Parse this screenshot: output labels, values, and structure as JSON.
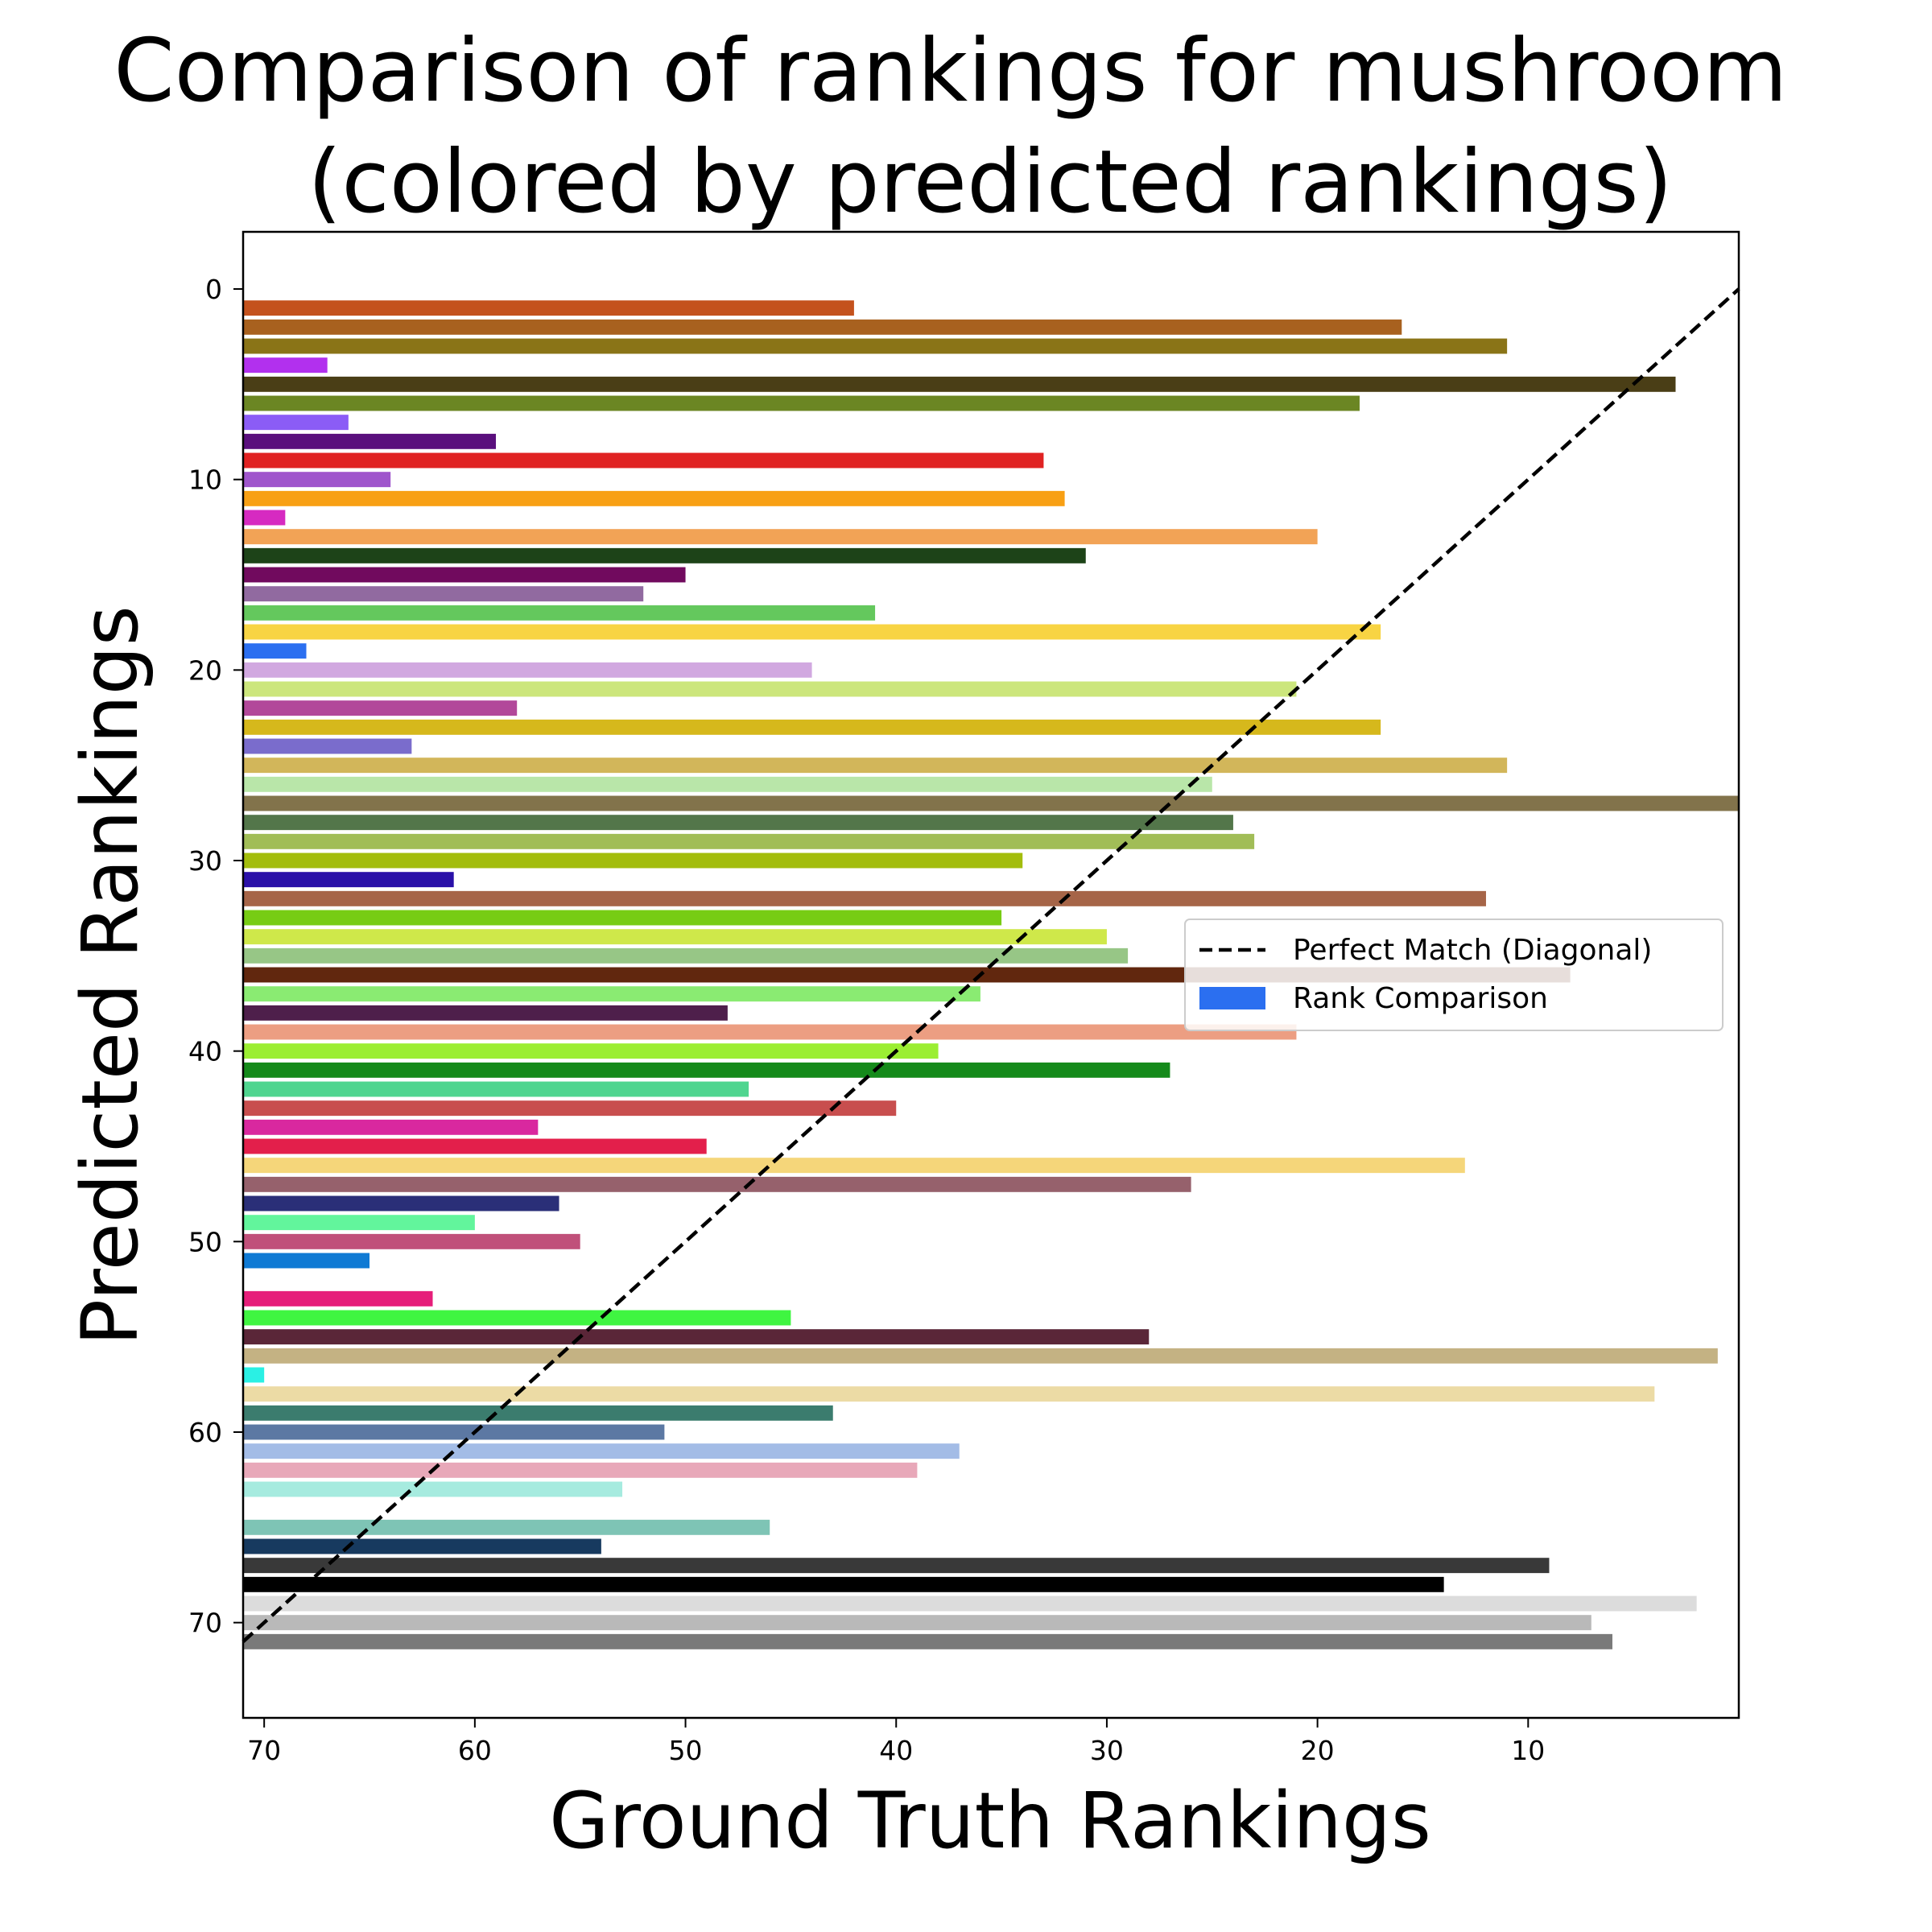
{
  "chart_data": {
    "type": "bar",
    "orientation": "horizontal",
    "title": "Comparison of rankings for mushroom\n(colored by predicted rankings)",
    "xlabel": "Ground Truth Rankings",
    "ylabel": "Predicted Rankings",
    "xlim": [
      71,
      0
    ],
    "ylim": [
      75,
      -3
    ],
    "xticks": [
      70,
      60,
      50,
      40,
      30,
      20,
      10
    ],
    "yticks": [
      0,
      10,
      20,
      30,
      40,
      50,
      60,
      70
    ],
    "grid": false,
    "legend_position": "center-right",
    "legend": [
      {
        "label": "Perfect Match (Diagonal)",
        "style": "dashed-line",
        "color": "#000000"
      },
      {
        "label": "Rank Comparison",
        "style": "patch",
        "color": "#2b6ff0"
      }
    ],
    "diagonal": {
      "from": [
        71,
        71
      ],
      "to": [
        0,
        0
      ]
    },
    "bars": [
      {
        "predicted": 1,
        "ground_truth": 42,
        "color": "#c4521d"
      },
      {
        "predicted": 2,
        "ground_truth": 16,
        "color": "#a8611f"
      },
      {
        "predicted": 3,
        "ground_truth": 11,
        "color": "#8a7417"
      },
      {
        "predicted": 4,
        "ground_truth": 67,
        "color": "#b230ee"
      },
      {
        "predicted": 5,
        "ground_truth": 3,
        "color": "#4a3e16"
      },
      {
        "predicted": 6,
        "ground_truth": 18,
        "color": "#6b8623"
      },
      {
        "predicted": 7,
        "ground_truth": 66,
        "color": "#8b5cf6"
      },
      {
        "predicted": 8,
        "ground_truth": 59,
        "color": "#5a0f7d"
      },
      {
        "predicted": 9,
        "ground_truth": 33,
        "color": "#e02222"
      },
      {
        "predicted": 10,
        "ground_truth": 64,
        "color": "#9f55cc"
      },
      {
        "predicted": 11,
        "ground_truth": 32,
        "color": "#f8a014"
      },
      {
        "predicted": 12,
        "ground_truth": 69,
        "color": "#d62ac1"
      },
      {
        "predicted": 13,
        "ground_truth": 20,
        "color": "#f2a356"
      },
      {
        "predicted": 14,
        "ground_truth": 31,
        "color": "#1d4318"
      },
      {
        "predicted": 15,
        "ground_truth": 50,
        "color": "#710a5e"
      },
      {
        "predicted": 16,
        "ground_truth": 52,
        "color": "#916aa0"
      },
      {
        "predicted": 17,
        "ground_truth": 41,
        "color": "#64c85d"
      },
      {
        "predicted": 18,
        "ground_truth": 17,
        "color": "#f8d443"
      },
      {
        "predicted": 19,
        "ground_truth": 68,
        "color": "#2b6ff0"
      },
      {
        "predicted": 20,
        "ground_truth": 44,
        "color": "#d1a8e0"
      },
      {
        "predicted": 21,
        "ground_truth": 21,
        "color": "#cce67c"
      },
      {
        "predicted": 22,
        "ground_truth": 58,
        "color": "#b2489a"
      },
      {
        "predicted": 23,
        "ground_truth": 17,
        "color": "#d6b81c"
      },
      {
        "predicted": 24,
        "ground_truth": 63,
        "color": "#7a6ccc"
      },
      {
        "predicted": 25,
        "ground_truth": 11,
        "color": "#d2b65a"
      },
      {
        "predicted": 26,
        "ground_truth": 25,
        "color": "#b9e6a9"
      },
      {
        "predicted": 27,
        "ground_truth": 0,
        "color": "#82734b"
      },
      {
        "predicted": 28,
        "ground_truth": 24,
        "color": "#53764a"
      },
      {
        "predicted": 29,
        "ground_truth": 23,
        "color": "#a1bd57"
      },
      {
        "predicted": 30,
        "ground_truth": 34,
        "color": "#a3bd0c"
      },
      {
        "predicted": 31,
        "ground_truth": 61,
        "color": "#2a10a8"
      },
      {
        "predicted": 32,
        "ground_truth": 12,
        "color": "#a66548"
      },
      {
        "predicted": 33,
        "ground_truth": 35,
        "color": "#77cc14"
      },
      {
        "predicted": 34,
        "ground_truth": 30,
        "color": "#cfe84a"
      },
      {
        "predicted": 35,
        "ground_truth": 29,
        "color": "#97c686"
      },
      {
        "predicted": 36,
        "ground_truth": 8,
        "color": "#61270e"
      },
      {
        "predicted": 37,
        "ground_truth": 36,
        "color": "#8aeb72"
      },
      {
        "predicted": 38,
        "ground_truth": 48,
        "color": "#4e1f4b"
      },
      {
        "predicted": 39,
        "ground_truth": 21,
        "color": "#ec9e82"
      },
      {
        "predicted": 40,
        "ground_truth": 38,
        "color": "#9bee33"
      },
      {
        "predicted": 41,
        "ground_truth": 27,
        "color": "#158a1b"
      },
      {
        "predicted": 42,
        "ground_truth": 47,
        "color": "#4fd58f"
      },
      {
        "predicted": 43,
        "ground_truth": 40,
        "color": "#c84e4e"
      },
      {
        "predicted": 44,
        "ground_truth": 57,
        "color": "#d9289f"
      },
      {
        "predicted": 45,
        "ground_truth": 49,
        "color": "#e31f4b"
      },
      {
        "predicted": 46,
        "ground_truth": 13,
        "color": "#f5d67a"
      },
      {
        "predicted": 47,
        "ground_truth": 26,
        "color": "#96616c"
      },
      {
        "predicted": 48,
        "ground_truth": 56,
        "color": "#2a2f78"
      },
      {
        "predicted": 49,
        "ground_truth": 60,
        "color": "#62f59c"
      },
      {
        "predicted": 50,
        "ground_truth": 55,
        "color": "#c0507a"
      },
      {
        "predicted": 51,
        "ground_truth": 65,
        "color": "#0f7ad4"
      },
      {
        "predicted": 53,
        "ground_truth": 62,
        "color": "#e61e7a"
      },
      {
        "predicted": 54,
        "ground_truth": 45,
        "color": "#3ff541"
      },
      {
        "predicted": 55,
        "ground_truth": 28,
        "color": "#5a2638"
      },
      {
        "predicted": 56,
        "ground_truth": 1,
        "color": "#c4b283"
      },
      {
        "predicted": 57,
        "ground_truth": 70,
        "color": "#2af0e4"
      },
      {
        "predicted": 58,
        "ground_truth": 4,
        "color": "#ecdba5"
      },
      {
        "predicted": 59,
        "ground_truth": 43,
        "color": "#3b7c6e"
      },
      {
        "predicted": 60,
        "ground_truth": 51,
        "color": "#5c78a3"
      },
      {
        "predicted": 61,
        "ground_truth": 37,
        "color": "#a3bce6"
      },
      {
        "predicted": 62,
        "ground_truth": 39,
        "color": "#e8a8b9"
      },
      {
        "predicted": 63,
        "ground_truth": 53,
        "color": "#a6ebdf"
      },
      {
        "predicted": 65,
        "ground_truth": 46,
        "color": "#7ec4b5"
      },
      {
        "predicted": 66,
        "ground_truth": 54,
        "color": "#173a5f"
      },
      {
        "predicted": 67,
        "ground_truth": 9,
        "color": "#393939"
      },
      {
        "predicted": 68,
        "ground_truth": 14,
        "color": "#000000"
      },
      {
        "predicted": 69,
        "ground_truth": 2,
        "color": "#dcdcdc"
      },
      {
        "predicted": 70,
        "ground_truth": 7,
        "color": "#b9b9b9"
      },
      {
        "predicted": 71,
        "ground_truth": 6,
        "color": "#7a7a7a"
      }
    ]
  }
}
